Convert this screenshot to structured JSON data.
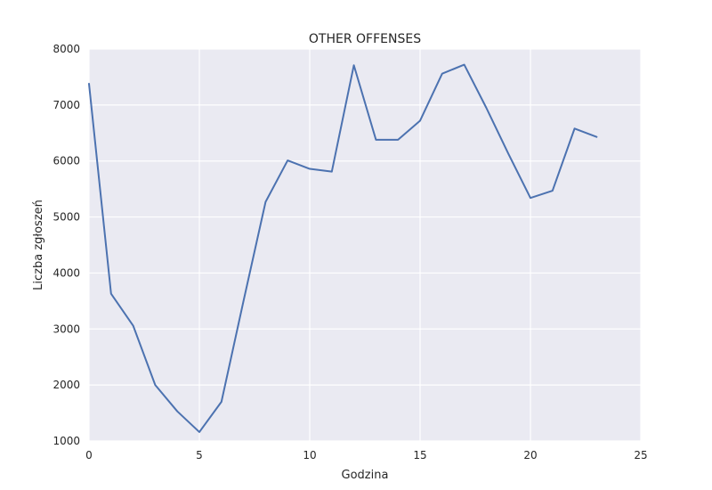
{
  "chart_data": {
    "type": "line",
    "title": "OTHER OFFENSES",
    "xlabel": "Godzina",
    "ylabel": "Liczba zgłoszeń",
    "xlim": [
      0,
      25
    ],
    "ylim": [
      1000,
      8000
    ],
    "xticks": [
      0,
      5,
      10,
      15,
      20,
      25
    ],
    "yticks": [
      1000,
      2000,
      3000,
      4000,
      5000,
      6000,
      7000,
      8000
    ],
    "grid": true,
    "legend": false,
    "colors": {
      "line": "#4c72b0",
      "plot_background": "#eaeaf2",
      "grid": "#ffffff"
    },
    "series": [
      {
        "x": [
          0,
          1,
          2,
          3,
          4,
          5,
          6,
          7,
          8,
          9,
          10,
          11,
          12,
          13,
          14,
          15,
          16,
          17,
          18,
          19,
          20,
          21,
          22,
          23
        ],
        "values": [
          7380,
          3630,
          3060,
          2000,
          1530,
          1160,
          1700,
          3500,
          5270,
          6010,
          5860,
          5810,
          7710,
          6380,
          6380,
          6720,
          7560,
          7720,
          6950,
          6130,
          5340,
          5470,
          6580,
          6430
        ]
      }
    ]
  }
}
